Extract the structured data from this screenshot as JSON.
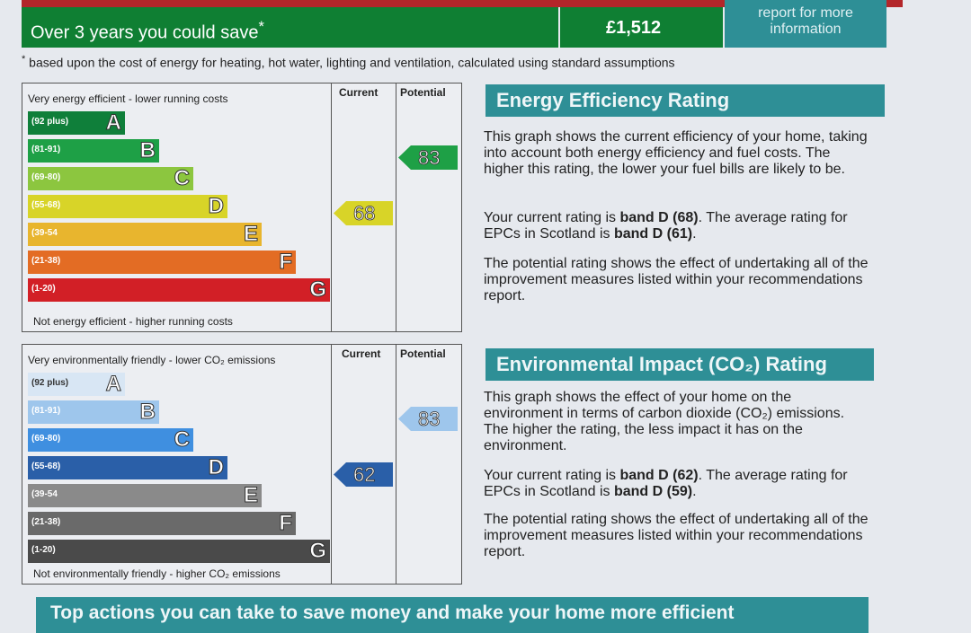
{
  "savings": {
    "label": "Over 3 years you could save",
    "asterisk": "*",
    "amount": "£1,512",
    "report_link": "report for more information",
    "footnote": "based upon the cost of energy for heating, hot water, lighting and ventilation, calculated using standard assumptions",
    "footnote_marker": "*"
  },
  "columns": {
    "current": "Current",
    "potential": "Potential"
  },
  "energy_chart": {
    "top_label": "Very energy efficient - lower running costs",
    "bottom_label": "Not energy efficient - higher running costs",
    "bands": [
      {
        "letter": "A",
        "range": "(92 plus)",
        "color": "#0f7f3a"
      },
      {
        "letter": "B",
        "range": "(81-91)",
        "color": "#1ea046"
      },
      {
        "letter": "C",
        "range": "(69-80)",
        "color": "#8cc63f"
      },
      {
        "letter": "D",
        "range": "(55-68)",
        "color": "#d8d428"
      },
      {
        "letter": "E",
        "range": "(39-54",
        "color": "#e8b52e"
      },
      {
        "letter": "F",
        "range": "(21-38)",
        "color": "#e36c24"
      },
      {
        "letter": "G",
        "range": "(1-20)",
        "color": "#d21f26"
      }
    ],
    "current": {
      "value": "68",
      "band": "D",
      "color": "#d8d428"
    },
    "potential": {
      "value": "83",
      "band": "B",
      "color": "#1ea046"
    }
  },
  "env_chart": {
    "top_label": "Very environmentally friendly - lower CO₂ emissions",
    "bottom_label": "Not environmentally friendly - higher CO₂ emissions",
    "bands": [
      {
        "letter": "A",
        "range": "(92 plus)",
        "color": "#d8e6f4"
      },
      {
        "letter": "B",
        "range": "(81-91)",
        "color": "#9ec6ec"
      },
      {
        "letter": "C",
        "range": "(69-80)",
        "color": "#3f8fe0"
      },
      {
        "letter": "D",
        "range": "(55-68)",
        "color": "#2a5fa8"
      },
      {
        "letter": "E",
        "range": "(39-54",
        "color": "#8a8a8a"
      },
      {
        "letter": "F",
        "range": "(21-38)",
        "color": "#6a6a6a"
      },
      {
        "letter": "G",
        "range": "(1-20)",
        "color": "#4a4a4a"
      }
    ],
    "current": {
      "value": "62",
      "band": "D",
      "color": "#2a5fa8"
    },
    "potential": {
      "value": "83",
      "band": "B",
      "color": "#9ec6ec"
    }
  },
  "energy_section": {
    "title": "Energy Efficiency Rating",
    "p1": "This graph shows the current efficiency of your home, taking into account both energy efficiency and fuel costs. The higher this rating, the lower your fuel bills are likely to be.",
    "p2_a": "Your current rating is ",
    "p2_b": "band D (68)",
    "p2_c": ". The average rating for EPCs in Scotland is ",
    "p2_d": "band D (61)",
    "p2_e": ".",
    "p3": "The potential rating shows the effect of undertaking all of the improvement measures listed within your recommendations report."
  },
  "env_section": {
    "title": "Environmental Impact (CO₂) Rating",
    "p1": "This graph shows the effect of your home on the environment in terms of carbon dioxide (CO₂) emissions. The higher the rating, the less impact it has on the environment.",
    "p2_a": "Your current rating is ",
    "p2_b": "band D (62)",
    "p2_c": ". The average rating for EPCs in Scotland is ",
    "p2_d": "band D (59)",
    "p2_e": ".",
    "p3": "The potential rating shows the effect of undertaking all of the improvement measures listed within your recommendations report."
  },
  "bottom_bar": "Top actions you can take to save money and make your home more efficient"
}
